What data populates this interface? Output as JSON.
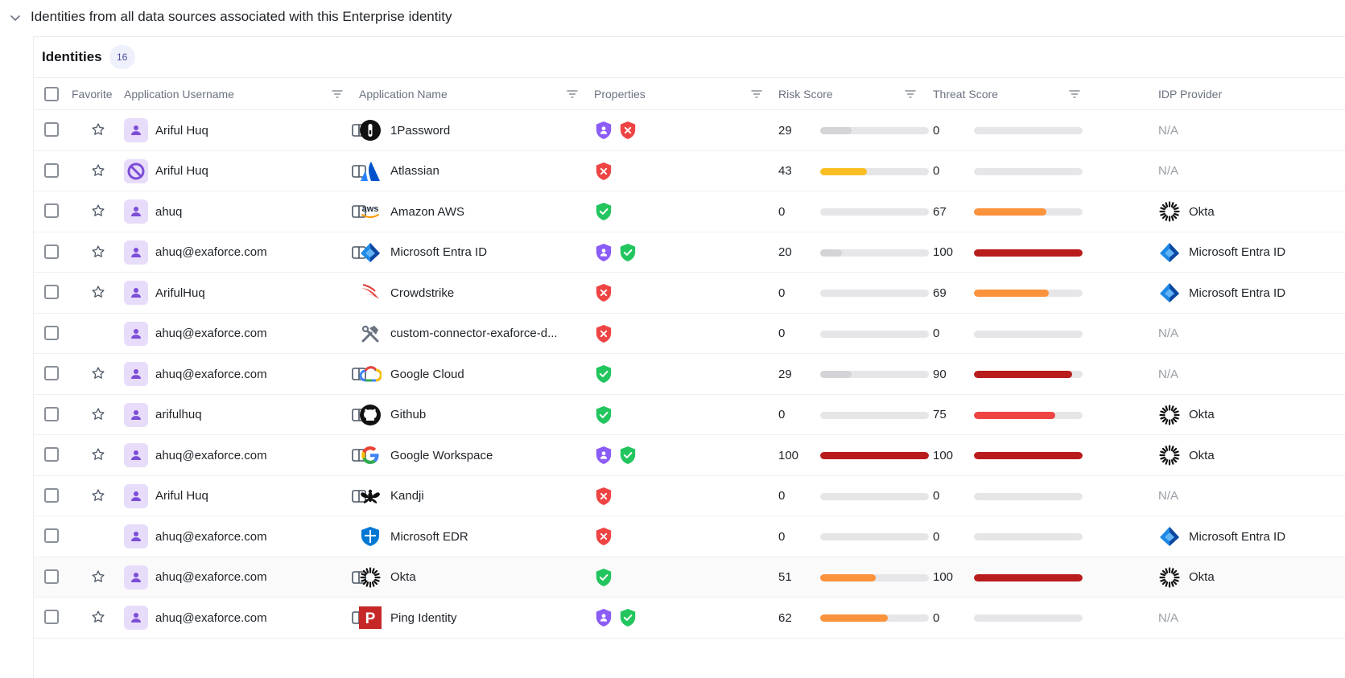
{
  "section": {
    "title": "Identities from all data sources associated with this Enterprise identity"
  },
  "panel": {
    "title": "Identities",
    "count": "16"
  },
  "columns": {
    "favorite": "Favorite",
    "app_username": "Application Username",
    "app_name": "Application Name",
    "properties": "Properties",
    "risk_score": "Risk Score",
    "threat_score": "Threat Score",
    "idp_provider": "IDP Provider"
  },
  "colors": {
    "gray": "#d4d4d8",
    "yellow": "#fbbf24",
    "orange": "#fb923c",
    "red": "#ef4444",
    "darkred": "#b91c1c"
  },
  "rows": [
    {
      "username": "Ariful Huq",
      "avatar": "user-icon",
      "favorite": true,
      "panel": true,
      "app": "1Password",
      "logo": "1password",
      "props": [
        "purple",
        "red"
      ],
      "risk": "29",
      "risk_value": 29,
      "risk_color": "#d4d4d8",
      "threat": "0",
      "threat_value": 0,
      "threat_color": "#d4d4d8",
      "idp": "N/A",
      "idp_logo": ""
    },
    {
      "username": "Ariful Huq",
      "avatar": "disabled-user-icon",
      "favorite": true,
      "panel": true,
      "app": "Atlassian",
      "logo": "atlassian",
      "props": [
        "red"
      ],
      "risk": "43",
      "risk_value": 43,
      "risk_color": "#fbbf24",
      "threat": "0",
      "threat_value": 0,
      "threat_color": "#d4d4d8",
      "idp": "N/A",
      "idp_logo": ""
    },
    {
      "username": "ahuq",
      "avatar": "user-icon",
      "favorite": true,
      "panel": true,
      "app": "Amazon AWS",
      "logo": "aws",
      "props": [
        "green"
      ],
      "risk": "0",
      "risk_value": 0,
      "risk_color": "#d4d4d8",
      "threat": "67",
      "threat_value": 67,
      "threat_color": "#fb923c",
      "idp": "Okta",
      "idp_logo": "okta"
    },
    {
      "username": "ahuq@exaforce.com",
      "avatar": "user-icon",
      "favorite": true,
      "panel": true,
      "app": "Microsoft Entra ID",
      "logo": "entra",
      "props": [
        "purple",
        "green"
      ],
      "risk": "20",
      "risk_value": 20,
      "risk_color": "#d4d4d8",
      "threat": "100",
      "threat_value": 100,
      "threat_color": "#b91c1c",
      "idp": "Microsoft Entra ID",
      "idp_logo": "entra"
    },
    {
      "username": "ArifulHuq",
      "avatar": "user-icon",
      "favorite": true,
      "panel": false,
      "app": "Crowdstrike",
      "logo": "crowdstrike",
      "props": [
        "red"
      ],
      "risk": "0",
      "risk_value": 0,
      "risk_color": "#d4d4d8",
      "threat": "69",
      "threat_value": 69,
      "threat_color": "#fb923c",
      "idp": "Microsoft Entra ID",
      "idp_logo": "entra"
    },
    {
      "username": "ahuq@exaforce.com",
      "avatar": "user-icon",
      "favorite": false,
      "panel": false,
      "app": "custom-connector-exaforce-d...",
      "logo": "tools",
      "props": [
        "red"
      ],
      "risk": "0",
      "risk_value": 0,
      "risk_color": "#d4d4d8",
      "threat": "0",
      "threat_value": 0,
      "threat_color": "#d4d4d8",
      "idp": "N/A",
      "idp_logo": ""
    },
    {
      "username": "ahuq@exaforce.com",
      "avatar": "user-icon",
      "favorite": true,
      "panel": true,
      "app": "Google Cloud",
      "logo": "gcloud",
      "props": [
        "green"
      ],
      "risk": "29",
      "risk_value": 29,
      "risk_color": "#d4d4d8",
      "threat": "90",
      "threat_value": 90,
      "threat_color": "#b91c1c",
      "idp": "N/A",
      "idp_logo": ""
    },
    {
      "username": "arifulhuq",
      "avatar": "user-icon",
      "favorite": true,
      "panel": true,
      "app": "Github",
      "logo": "github",
      "props": [
        "green"
      ],
      "risk": "0",
      "risk_value": 0,
      "risk_color": "#d4d4d8",
      "threat": "75",
      "threat_value": 75,
      "threat_color": "#ef4444",
      "idp": "Okta",
      "idp_logo": "okta"
    },
    {
      "username": "ahuq@exaforce.com",
      "avatar": "user-icon",
      "favorite": true,
      "panel": true,
      "app": "Google Workspace",
      "logo": "google",
      "props": [
        "purple",
        "green"
      ],
      "risk": "100",
      "risk_value": 100,
      "risk_color": "#b91c1c",
      "threat": "100",
      "threat_value": 100,
      "threat_color": "#b91c1c",
      "idp": "Okta",
      "idp_logo": "okta"
    },
    {
      "username": "Ariful Huq",
      "avatar": "user-icon",
      "favorite": true,
      "panel": true,
      "app": "Kandji",
      "logo": "kandji",
      "props": [
        "red"
      ],
      "risk": "0",
      "risk_value": 0,
      "risk_color": "#d4d4d8",
      "threat": "0",
      "threat_value": 0,
      "threat_color": "#d4d4d8",
      "idp": "N/A",
      "idp_logo": ""
    },
    {
      "username": "ahuq@exaforce.com",
      "avatar": "user-icon",
      "favorite": false,
      "panel": false,
      "app": "Microsoft EDR",
      "logo": "msedr",
      "props": [
        "red"
      ],
      "risk": "0",
      "risk_value": 0,
      "risk_color": "#d4d4d8",
      "threat": "0",
      "threat_value": 0,
      "threat_color": "#d4d4d8",
      "idp": "Microsoft Entra ID",
      "idp_logo": "entra"
    },
    {
      "username": "ahuq@exaforce.com",
      "avatar": "user-icon",
      "favorite": true,
      "panel": true,
      "app": "Okta",
      "logo": "okta",
      "props": [
        "green"
      ],
      "risk": "51",
      "risk_value": 51,
      "risk_color": "#fb923c",
      "threat": "100",
      "threat_value": 100,
      "threat_color": "#b91c1c",
      "idp": "Okta",
      "idp_logo": "okta"
    },
    {
      "username": "ahuq@exaforce.com",
      "avatar": "user-icon",
      "favorite": true,
      "panel": true,
      "app": "Ping Identity",
      "logo": "ping",
      "props": [
        "purple",
        "green"
      ],
      "risk": "62",
      "risk_value": 62,
      "risk_color": "#fb923c",
      "threat": "0",
      "threat_value": 0,
      "threat_color": "#d4d4d8",
      "idp": "N/A",
      "idp_logo": ""
    }
  ]
}
